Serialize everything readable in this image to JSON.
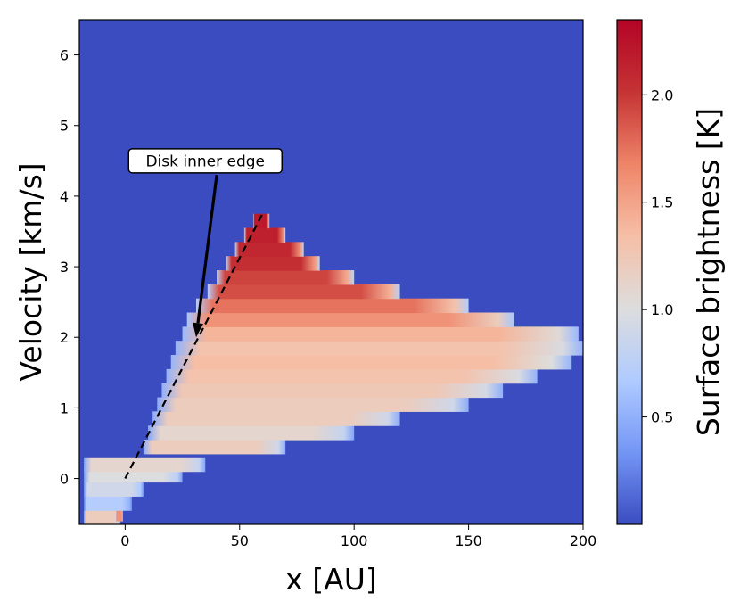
{
  "chart_data": {
    "type": "heatmap",
    "xlabel": "x [AU]",
    "ylabel": "Velocity [km/s]",
    "xlim": [
      -20,
      200
    ],
    "ylim": [
      -0.65,
      6.5
    ],
    "x_ticks": [
      0,
      50,
      100,
      150,
      200
    ],
    "y_ticks": [
      0,
      1,
      2,
      3,
      4,
      5,
      6
    ],
    "grid": false,
    "colorbar": {
      "label": "Surface brightness [K]",
      "range": [
        0.0,
        2.35
      ],
      "ticks": [
        0.5,
        1.0,
        1.5,
        2.0
      ],
      "tick_labels": [
        "0.5",
        "1.0",
        "1.5",
        "2.0"
      ],
      "colormap": [
        "#3b4cc0",
        "#7396f5",
        "#b0cbff",
        "#dddddd",
        "#f6bfa6",
        "#ee8468",
        "#c53334",
        "#b40426"
      ]
    },
    "background_color": "#3b4cc0",
    "emission_rows": [
      {
        "v": -0.55,
        "x_start": -18,
        "x_end": -2,
        "value": 1.2
      },
      {
        "v": -0.5,
        "x_start": -4,
        "x_end": -1,
        "value": 1.6
      },
      {
        "v": -0.35,
        "x_start": -18,
        "x_end": 3,
        "value": 0.7
      },
      {
        "v": -0.15,
        "x_start": -18,
        "x_end": 8,
        "value": 0.9
      },
      {
        "v": 0.05,
        "x_start": -18,
        "x_end": 25,
        "value": 1.0
      },
      {
        "v": 0.2,
        "x_start": -18,
        "x_end": 35,
        "value": 1.1
      },
      {
        "v": 0.45,
        "x_start": 8,
        "x_end": 70,
        "value": 1.2
      },
      {
        "v": 0.65,
        "x_start": 10,
        "x_end": 100,
        "value": 1.1
      },
      {
        "v": 0.85,
        "x_start": 12,
        "x_end": 120,
        "value": 1.2
      },
      {
        "v": 1.05,
        "x_start": 14,
        "x_end": 150,
        "value": 1.2
      },
      {
        "v": 1.25,
        "x_start": 16,
        "x_end": 165,
        "value": 1.25
      },
      {
        "v": 1.45,
        "x_start": 18,
        "x_end": 180,
        "value": 1.3
      },
      {
        "v": 1.65,
        "x_start": 20,
        "x_end": 195,
        "value": 1.35
      },
      {
        "v": 1.85,
        "x_start": 22,
        "x_end": 200,
        "value": 1.3
      },
      {
        "v": 2.05,
        "x_start": 25,
        "x_end": 198,
        "value": 1.4
      },
      {
        "v": 2.25,
        "x_start": 27,
        "x_end": 170,
        "value": 1.6
      },
      {
        "v": 2.45,
        "x_start": 31,
        "x_end": 150,
        "value": 1.75
      },
      {
        "v": 2.65,
        "x_start": 36,
        "x_end": 120,
        "value": 1.9
      },
      {
        "v": 2.85,
        "x_start": 40,
        "x_end": 100,
        "value": 1.95
      },
      {
        "v": 3.05,
        "x_start": 44,
        "x_end": 85,
        "value": 2.05
      },
      {
        "v": 3.25,
        "x_start": 48,
        "x_end": 78,
        "value": 2.1
      },
      {
        "v": 3.45,
        "x_start": 52,
        "x_end": 70,
        "value": 2.15
      },
      {
        "v": 3.65,
        "x_start": 56,
        "x_end": 63,
        "value": 2.2
      }
    ],
    "dashed_line": {
      "x": [
        0,
        60
      ],
      "y": [
        0,
        3.75
      ]
    },
    "annotation": {
      "text": "Disk inner edge",
      "text_position": {
        "x": 35,
        "y": 4.5
      },
      "arrow_head": {
        "x": 31,
        "y": 2.0
      },
      "arrow_tail": {
        "x": 40,
        "y": 4.3
      }
    }
  }
}
